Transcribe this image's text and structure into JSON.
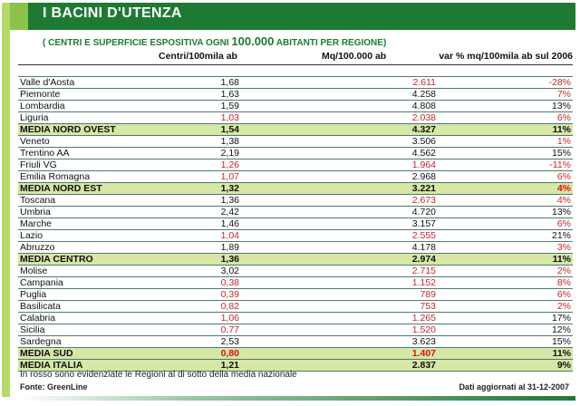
{
  "title": "I BACINI D'UTENZA",
  "subtitle": {
    "open": "(",
    "pre": "CENTRI E SUPERFICIE ESPOSITIVA OGNI ",
    "num": "100.000",
    "post": " ABITANTI PER REGIONE",
    "close": ")"
  },
  "columns": [
    "Centri/100mila ab",
    "Mq/100.000 ab",
    "var % mq/100mila ab sul 2006"
  ],
  "rows": [
    {
      "name": "Valle d'Aosta",
      "c": "1,68",
      "m": "2.611",
      "v": "-28%",
      "red": [
        0,
        1,
        1
      ],
      "avg": false
    },
    {
      "name": "Piemonte",
      "c": "1,63",
      "m": "4.258",
      "v": "7%",
      "red": [
        0,
        0,
        1
      ],
      "avg": false
    },
    {
      "name": "Lombardia",
      "c": "1,59",
      "m": "4.808",
      "v": "13%",
      "red": [
        0,
        0,
        0
      ],
      "avg": false
    },
    {
      "name": "Liguria",
      "c": "1,03",
      "m": "2.038",
      "v": "6%",
      "red": [
        1,
        1,
        1
      ],
      "avg": false
    },
    {
      "name": "MEDIA NORD OVEST",
      "c": "1,54",
      "m": "4.327",
      "v": "11%",
      "red": [
        0,
        0,
        0
      ],
      "avg": true
    },
    {
      "name": "Veneto",
      "c": "1,38",
      "m": "3.506",
      "v": "1%",
      "red": [
        0,
        0,
        1
      ],
      "avg": false
    },
    {
      "name": "Trentino AA",
      "c": "2,19",
      "m": "4.562",
      "v": "15%",
      "red": [
        0,
        0,
        0
      ],
      "avg": false
    },
    {
      "name": "Friuli VG",
      "c": "1,26",
      "m": "1.964",
      "v": "-11%",
      "red": [
        1,
        1,
        1
      ],
      "avg": false
    },
    {
      "name": "Emilia Romagna",
      "c": "1,07",
      "m": "2.968",
      "v": "6%",
      "red": [
        1,
        0,
        1
      ],
      "avg": false
    },
    {
      "name": "MEDIA NORD EST",
      "c": "1,32",
      "m": "3.221",
      "v": "4%",
      "red": [
        0,
        0,
        1
      ],
      "avg": true
    },
    {
      "name": "Toscana",
      "c": "1,36",
      "m": "2.673",
      "v": "4%",
      "red": [
        0,
        1,
        1
      ],
      "avg": false
    },
    {
      "name": "Umbria",
      "c": "2,42",
      "m": "4.720",
      "v": "13%",
      "red": [
        0,
        0,
        0
      ],
      "avg": false
    },
    {
      "name": "Marche",
      "c": "1,46",
      "m": "3.157",
      "v": "6%",
      "red": [
        0,
        0,
        1
      ],
      "avg": false
    },
    {
      "name": "Lazio",
      "c": "1,04",
      "m": "2.555",
      "v": "21%",
      "red": [
        1,
        1,
        0
      ],
      "avg": false
    },
    {
      "name": "Abruzzo",
      "c": "1,89",
      "m": "4.178",
      "v": "3%",
      "red": [
        0,
        0,
        1
      ],
      "avg": false
    },
    {
      "name": "MEDIA CENTRO",
      "c": "1,36",
      "m": "2.974",
      "v": "11%",
      "red": [
        0,
        0,
        0
      ],
      "avg": true
    },
    {
      "name": "Molise",
      "c": "3,02",
      "m": "2.715",
      "v": "2%",
      "red": [
        0,
        1,
        1
      ],
      "avg": false
    },
    {
      "name": "Campania",
      "c": "0,38",
      "m": "1.152",
      "v": "8%",
      "red": [
        1,
        1,
        1
      ],
      "avg": false
    },
    {
      "name": "Puglia",
      "c": "0,39",
      "m": "789",
      "v": "6%",
      "red": [
        1,
        1,
        1
      ],
      "avg": false
    },
    {
      "name": "Basilicata",
      "c": "0,82",
      "m": "753",
      "v": "2%",
      "red": [
        1,
        1,
        1
      ],
      "avg": false
    },
    {
      "name": "Calabria",
      "c": "1,06",
      "m": "1.265",
      "v": "17%",
      "red": [
        1,
        1,
        0
      ],
      "avg": false
    },
    {
      "name": "Sicilia",
      "c": "0,77",
      "m": "1.520",
      "v": "12%",
      "red": [
        1,
        1,
        0
      ],
      "avg": false
    },
    {
      "name": "Sardegna",
      "c": "2,53",
      "m": "3.623",
      "v": "15%",
      "red": [
        0,
        0,
        0
      ],
      "avg": false
    },
    {
      "name": "MEDIA SUD",
      "c": "0,80",
      "m": "1.407",
      "v": "11%",
      "red": [
        1,
        1,
        0
      ],
      "avg": true
    },
    {
      "name": "MEDIA ITALIA",
      "c": "1,21",
      "m": "2.837",
      "v": "9%",
      "red": [
        0,
        0,
        0
      ],
      "avg": true
    }
  ],
  "note": "In rosso sono evidenziate le Regioni al di sotto della media nazionale",
  "source": "Fonte: GreenLine",
  "updated": "Dati aggiornati al 31-12-2007",
  "colors": {
    "green": "#1e7a32",
    "red": "#c8262b",
    "avgBg": "#d6e7a6"
  }
}
